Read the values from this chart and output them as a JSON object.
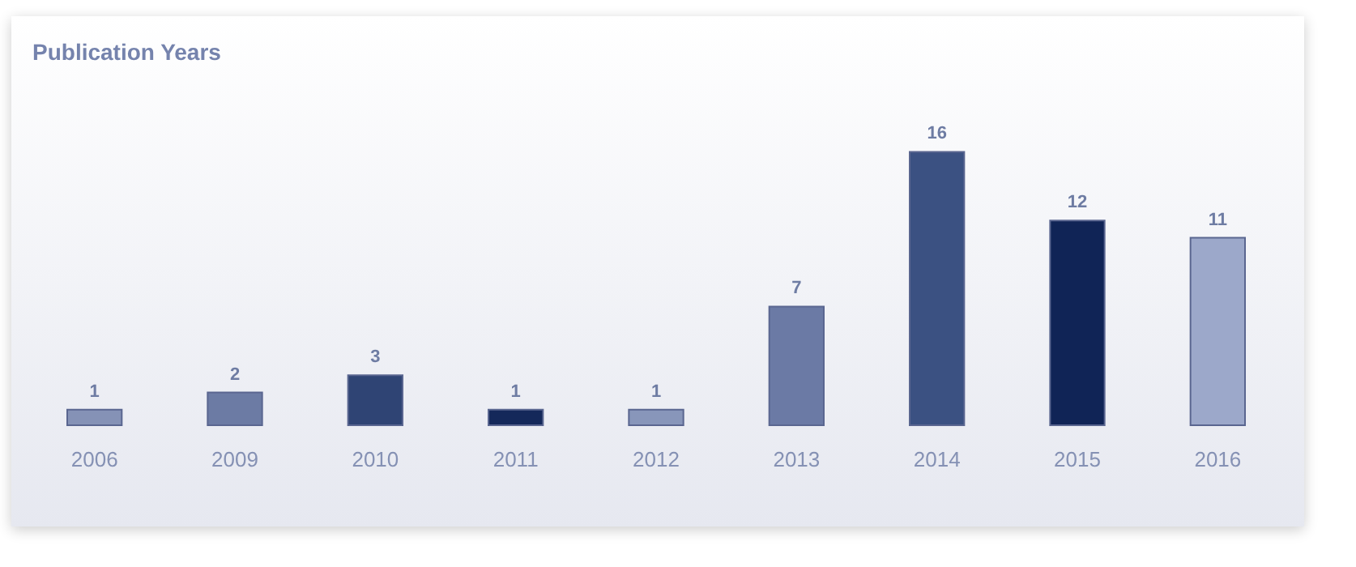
{
  "chart_data": {
    "type": "bar",
    "title": "Publication Years",
    "categories": [
      "2006",
      "2009",
      "2010",
      "2011",
      "2012",
      "2013",
      "2014",
      "2015",
      "2016"
    ],
    "values": [
      1,
      2,
      3,
      1,
      1,
      7,
      16,
      12,
      11
    ],
    "colors": [
      "#8592b6",
      "#6c7ba4",
      "#2f4474",
      "#14285a",
      "#8896ba",
      "#6b7aa5",
      "#3b5182",
      "#102456",
      "#9ca8ca"
    ],
    "data_labels": true
  }
}
